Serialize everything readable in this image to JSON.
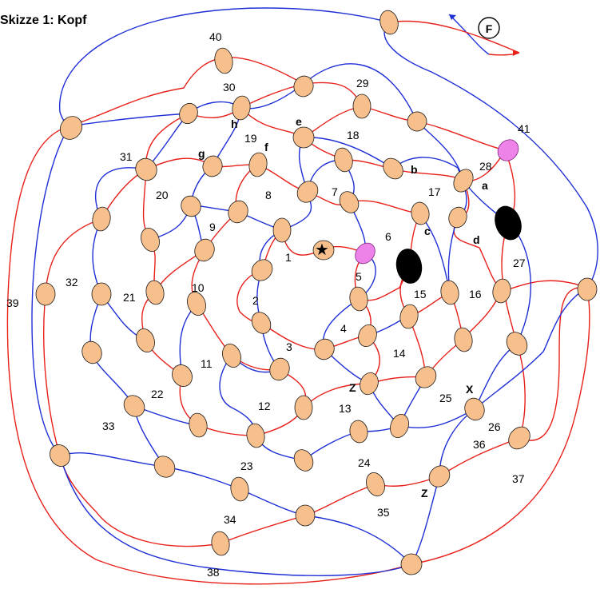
{
  "title": "Skizze 1: Kopf",
  "direction_marker": "F",
  "colors": {
    "red_thread": "#e8201a",
    "blue_thread": "#1f2fd6",
    "node_fill": "#f6bf8c",
    "pink_node": "#ee82e8"
  },
  "field_numbers": [
    "1",
    "2",
    "3",
    "4",
    "5",
    "6",
    "7",
    "8",
    "9",
    "10",
    "11",
    "12",
    "13",
    "14",
    "15",
    "16",
    "17",
    "18",
    "19",
    "20",
    "21",
    "22",
    "23",
    "24",
    "25",
    "26",
    "27",
    "28",
    "29",
    "30",
    "31",
    "32",
    "33",
    "34",
    "35",
    "36",
    "37",
    "38",
    "39",
    "40",
    "41"
  ],
  "letters": {
    "a": "a",
    "b": "b",
    "c": "c",
    "d": "d",
    "e": "e",
    "f": "f",
    "g": "g",
    "h": "h",
    "x": "X",
    "z1": "Z",
    "z2": "Z"
  }
}
